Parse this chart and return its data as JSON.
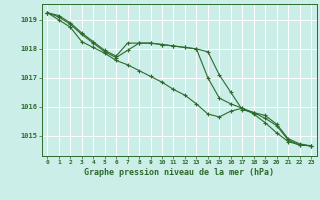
{
  "background_color": "#cceee8",
  "grid_color": "#ffffff",
  "line_color": "#2d6a2d",
  "xlabel": "Graphe pression niveau de la mer (hPa)",
  "ylabel_ticks": [
    1015,
    1016,
    1017,
    1018,
    1019
  ],
  "xlim": [
    -0.5,
    23.5
  ],
  "ylim": [
    1014.3,
    1019.55
  ],
  "series1": [
    1019.25,
    1019.15,
    1018.9,
    1018.55,
    1018.25,
    1017.95,
    1017.75,
    1018.2,
    1018.2,
    1018.2,
    1018.15,
    1018.1,
    1018.05,
    1018.0,
    1017.9,
    1017.1,
    1016.5,
    1015.9,
    1015.8,
    1015.7,
    1015.4,
    1014.9,
    1014.72,
    1014.65
  ],
  "series2": [
    1019.25,
    1019.1,
    1018.85,
    1018.5,
    1018.2,
    1017.9,
    1017.7,
    1017.95,
    1018.2,
    1018.2,
    1018.15,
    1018.1,
    1018.05,
    1018.0,
    1017.0,
    1016.3,
    1016.1,
    1015.95,
    1015.8,
    1015.6,
    1015.35,
    1014.85,
    1014.68,
    1014.65
  ],
  "series3": [
    1019.25,
    1019.0,
    1018.75,
    1018.25,
    1018.05,
    1017.85,
    1017.6,
    1017.45,
    1017.25,
    1017.05,
    1016.85,
    1016.6,
    1016.4,
    1016.1,
    1015.75,
    1015.65,
    1015.85,
    1015.95,
    1015.75,
    1015.45,
    1015.1,
    1014.8,
    1014.68,
    1014.65
  ]
}
